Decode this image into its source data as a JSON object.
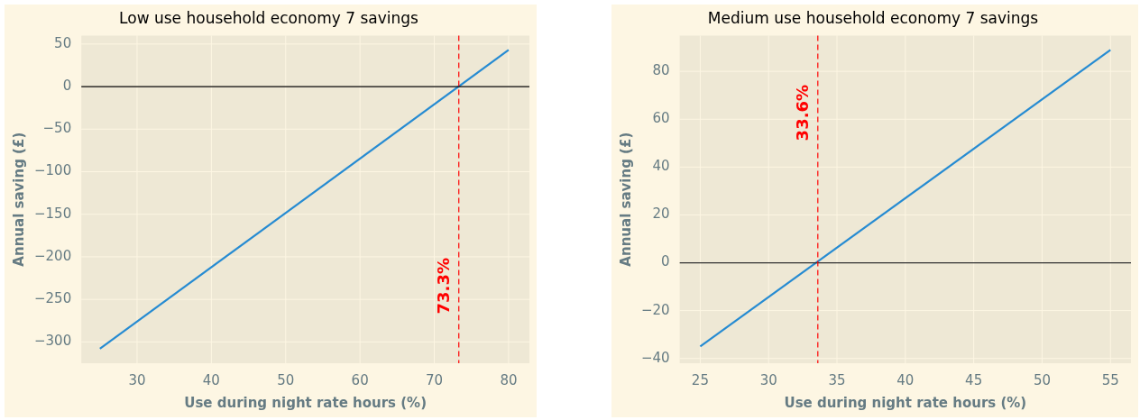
{
  "chart_data": [
    {
      "type": "line",
      "title": "Low use household economy 7 savings",
      "xlabel": "Use during night rate hours (%)",
      "ylabel": "Annual saving (£)",
      "x": [
        25,
        80
      ],
      "series": [
        {
          "color": "#268bd2",
          "values": [
            -308,
            43
          ]
        }
      ],
      "xlim": [
        22.5,
        82.8
      ],
      "xticks": [
        30,
        40,
        50,
        60,
        70,
        80
      ],
      "ylim": [
        -325,
        60
      ],
      "yticks": [
        -300,
        -250,
        -200,
        -150,
        -100,
        -50,
        0,
        50
      ],
      "grid": true,
      "legend": false,
      "marker": "none",
      "line_style": "solid",
      "ref_lines": [
        {
          "axis": "y",
          "value": 0,
          "color": "#000000",
          "line_style": "solid"
        },
        {
          "axis": "x",
          "value": 73.3,
          "label": "73.3%",
          "color": "#ff0000",
          "line_style": "dashed"
        }
      ]
    },
    {
      "type": "line",
      "title": "Medium use household economy 7 savings",
      "xlabel": "Use during night rate hours (%)",
      "ylabel": "Annual saving (£)",
      "x": [
        25,
        55
      ],
      "series": [
        {
          "color": "#268bd2",
          "values": [
            -35,
            89
          ]
        }
      ],
      "xlim": [
        23.5,
        56.5
      ],
      "xticks": [
        25,
        30,
        35,
        40,
        45,
        50,
        55
      ],
      "ylim": [
        -42,
        95
      ],
      "yticks": [
        -40,
        -20,
        0,
        20,
        40,
        60,
        80
      ],
      "grid": true,
      "legend": false,
      "marker": "none",
      "line_style": "solid",
      "ref_lines": [
        {
          "axis": "y",
          "value": 0,
          "color": "#333333",
          "line_style": "solid"
        },
        {
          "axis": "x",
          "value": 33.6,
          "label": "33.6%",
          "color": "#ff0000",
          "line_style": "dashed"
        }
      ]
    }
  ]
}
